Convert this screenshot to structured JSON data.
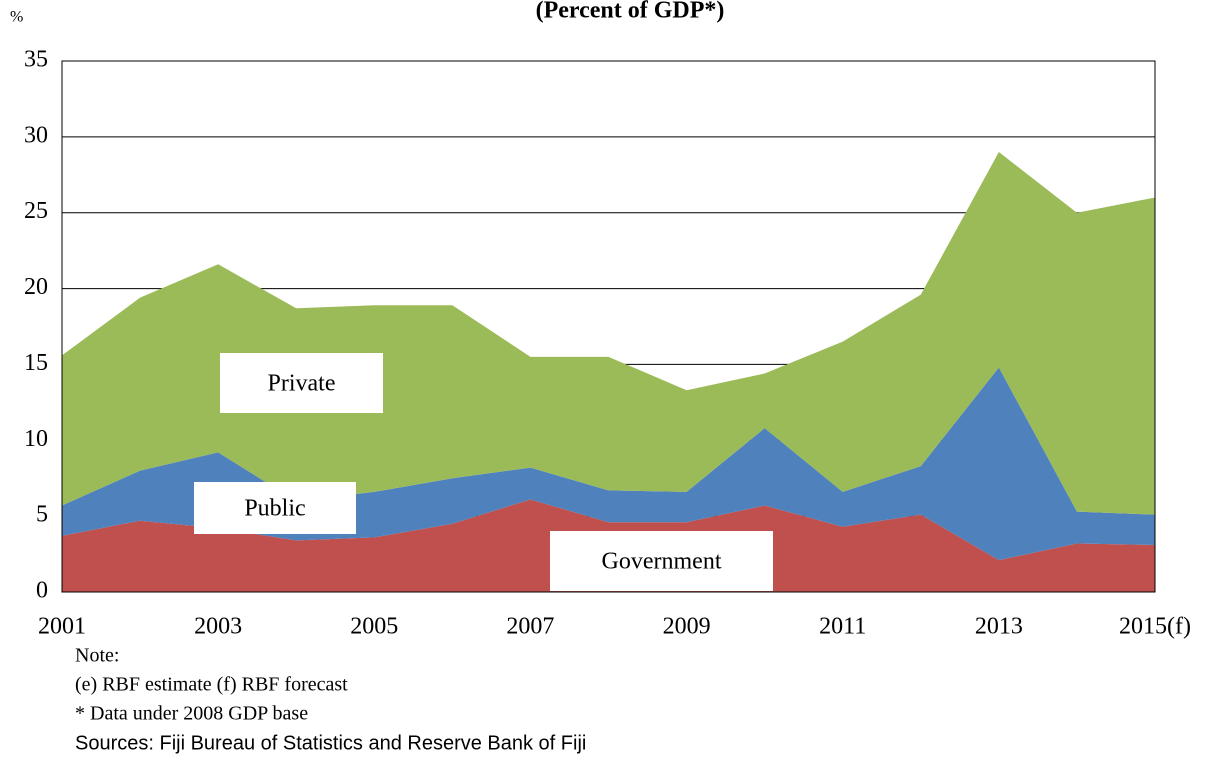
{
  "chart_data": {
    "type": "stacked-area",
    "title": "(Percent of GDP*)",
    "y_label": "%",
    "categories": [
      "2001",
      null,
      "2003",
      null,
      "2005",
      null,
      "2007",
      null,
      "2009",
      null,
      "2011",
      null,
      "2013",
      null,
      "2015(f)"
    ],
    "series": [
      {
        "name": "Government",
        "color": "#c0504d",
        "values": [
          3.7,
          4.7,
          4.2,
          3.4,
          3.6,
          4.5,
          6.1,
          4.6,
          4.6,
          5.7,
          4.3,
          5.1,
          2.1,
          3.2,
          3.1
        ]
      },
      {
        "name": "Public",
        "color": "#4f81bd",
        "values": [
          2.0,
          3.3,
          5.0,
          2.6,
          3.0,
          3.0,
          2.1,
          2.1,
          2.0,
          5.1,
          2.3,
          3.2,
          12.7,
          2.1,
          2.0
        ]
      },
      {
        "name": "Private",
        "color": "#9bbb59",
        "values": [
          9.9,
          11.4,
          12.4,
          12.7,
          12.3,
          11.4,
          7.3,
          8.8,
          6.7,
          3.6,
          9.9,
          11.3,
          14.2,
          19.7,
          20.9
        ]
      }
    ],
    "ylim": [
      0,
      35
    ],
    "yticks": [
      0,
      5,
      10,
      15,
      20,
      25,
      30,
      35
    ],
    "grid": true,
    "notes": [
      "Note:",
      "(e) RBF estimate (f) RBF forecast",
      "* Data under 2008 GDP base",
      "Sources:  Fiji Bureau of Statistics and Reserve Bank of Fiji"
    ]
  }
}
